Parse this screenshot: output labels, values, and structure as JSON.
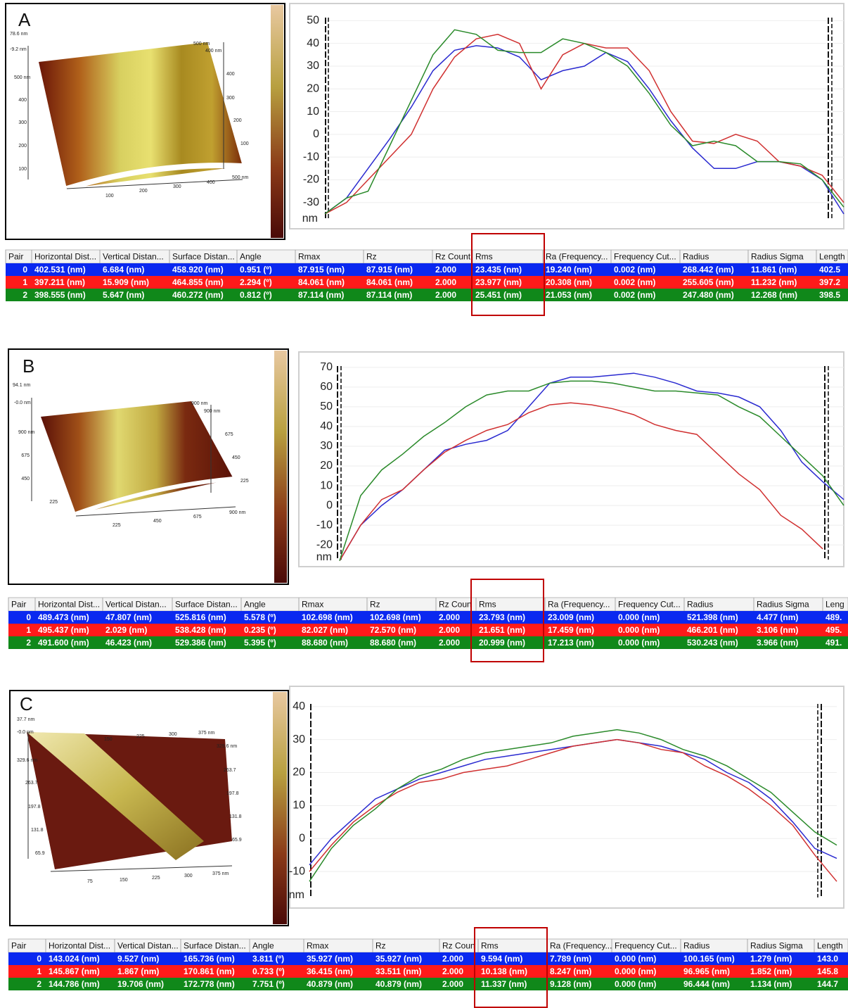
{
  "chart_data": [
    {
      "type": "line",
      "ylabel": "nm",
      "ylim": [
        -40,
        56
      ],
      "yticks": [
        50,
        40,
        30,
        20,
        10,
        0,
        -10,
        -20,
        -30
      ],
      "grid": true,
      "series": [
        {
          "color": "#2a2ad0",
          "values": [
            -35,
            -28,
            -15,
            -2,
            12,
            28,
            37,
            39,
            38,
            34,
            24,
            28,
            30,
            36,
            32,
            20,
            6,
            -6,
            -15,
            -15,
            -12,
            -12,
            -14,
            -20,
            -35
          ]
        },
        {
          "color": "#d03030",
          "values": [
            -35,
            -30,
            -20,
            -10,
            0,
            20,
            34,
            42,
            44,
            40,
            20,
            35,
            40,
            38,
            38,
            28,
            10,
            -3,
            -4,
            0,
            -3,
            -12,
            -14,
            -18,
            -30
          ]
        },
        {
          "color": "#2a8a2a",
          "values": [
            -35,
            -28,
            -25,
            -5,
            15,
            35,
            46,
            44,
            37,
            36,
            36,
            42,
            40,
            36,
            30,
            18,
            4,
            -5,
            -3,
            -5,
            -12,
            -12,
            -13,
            -20,
            -32
          ]
        }
      ]
    },
    {
      "type": "line",
      "ylabel": "nm",
      "ylim": [
        -31,
        76
      ],
      "yticks": [
        70,
        60,
        50,
        40,
        30,
        20,
        10,
        0,
        -10,
        -20
      ],
      "grid": true,
      "series": [
        {
          "color": "#2a2ad0",
          "values": [
            -28,
            -10,
            0,
            8,
            18,
            28,
            31,
            33,
            38,
            50,
            62,
            65,
            65,
            66,
            67,
            65,
            62,
            58,
            57,
            55,
            50,
            38,
            22,
            12,
            3
          ]
        },
        {
          "color": "#d03030",
          "values": [
            -28,
            -10,
            3,
            8,
            18,
            27,
            33,
            38,
            41,
            47,
            51,
            52,
            51,
            49,
            46,
            41,
            38,
            36,
            26,
            16,
            8,
            -5,
            -12,
            -22,
            null
          ]
        },
        {
          "color": "#2a8a2a",
          "values": [
            -28,
            5,
            18,
            26,
            35,
            42,
            50,
            56,
            58,
            58,
            62,
            63,
            63,
            62,
            60,
            58,
            58,
            57,
            56,
            50,
            45,
            35,
            25,
            15,
            0
          ]
        }
      ]
    },
    {
      "type": "line",
      "ylabel": "nm",
      "ylim": [
        -20,
        44
      ],
      "yticks": [
        40,
        30,
        20,
        10,
        0,
        -10
      ],
      "grid": true,
      "series": [
        {
          "color": "#2a2ad0",
          "values": [
            -8,
            0,
            6,
            12,
            15,
            18,
            20,
            22,
            24,
            25,
            26,
            27,
            28,
            29,
            30,
            29,
            28,
            26,
            24,
            20,
            17,
            12,
            5,
            -3,
            -6
          ]
        },
        {
          "color": "#d03030",
          "values": [
            -10,
            -2,
            5,
            10,
            14,
            17,
            18,
            20,
            21,
            22,
            24,
            26,
            28,
            29,
            30,
            29,
            27,
            26,
            22,
            19,
            15,
            10,
            4,
            -5,
            -13
          ]
        },
        {
          "color": "#2a8a2a",
          "values": [
            -13,
            -3,
            4,
            9,
            15,
            19,
            21,
            24,
            26,
            27,
            28,
            29,
            31,
            32,
            33,
            32,
            30,
            27,
            25,
            22,
            18,
            14,
            8,
            2,
            -2
          ]
        }
      ]
    }
  ],
  "panels": [
    {
      "label": "A",
      "image_labels": [
        "78.6 nm",
        "-9.2 nm",
        "500 nm",
        "400",
        "300",
        "200",
        "100",
        "500 nm",
        "400 nm",
        "400",
        "300",
        "200",
        "100",
        "100",
        "200",
        "300",
        "400",
        "500 nm"
      ]
    },
    {
      "label": "B",
      "image_labels": [
        "94.1 nm",
        "-0.0 nm",
        "900 nm",
        "675",
        "450",
        "225",
        "900 nm",
        "900 nm",
        "675",
        "450",
        "225",
        "225",
        "450",
        "675",
        "900 nm"
      ]
    },
    {
      "label": "C",
      "image_labels": [
        "37.7 nm",
        "-0.0 nm",
        "329.6 nm",
        "263.7",
        "197.8",
        "131.8",
        "65.9",
        "150",
        "225",
        "300",
        "375 nm",
        "329.6 nm",
        "263.7",
        "197.8",
        "131.8",
        "65.9",
        "75",
        "150",
        "225",
        "300",
        "375 nm"
      ]
    }
  ],
  "tables": [
    {
      "columns": [
        "Pair",
        "Horizontal Dist...",
        "Vertical Distan...",
        "Surface Distan...",
        "Angle",
        "Rmax",
        "Rz",
        "Rz Count",
        "Rms",
        "Ra (Frequency...",
        "Frequency Cut...",
        "Radius",
        "Radius Sigma",
        "Length"
      ],
      "rows": [
        [
          "0",
          "402.531 (nm)",
          "6.684 (nm)",
          "458.920 (nm)",
          "0.951 (º)",
          "87.915 (nm)",
          "87.915 (nm)",
          "2.000",
          "23.435 (nm)",
          "19.240 (nm)",
          "0.002 (nm)",
          "268.442 (nm)",
          "11.861 (nm)",
          "402.5"
        ],
        [
          "1",
          "397.211 (nm)",
          "15.909 (nm)",
          "464.855 (nm)",
          "2.294 (º)",
          "84.061 (nm)",
          "84.061 (nm)",
          "2.000",
          "23.977 (nm)",
          "20.308 (nm)",
          "0.002 (nm)",
          "255.605 (nm)",
          "11.232 (nm)",
          "397.2"
        ],
        [
          "2",
          "398.555 (nm)",
          "5.647 (nm)",
          "460.272 (nm)",
          "0.812 (º)",
          "87.114 (nm)",
          "87.114 (nm)",
          "2.000",
          "25.451 (nm)",
          "21.053 (nm)",
          "0.002 (nm)",
          "247.480 (nm)",
          "12.268 (nm)",
          "398.5"
        ]
      ]
    },
    {
      "columns": [
        "Pair",
        "Horizontal Dist...",
        "Vertical Distan...",
        "Surface Distan...",
        "Angle",
        "Rmax",
        "Rz",
        "Rz Coun",
        "Rms",
        "Ra (Frequency...",
        "Frequency Cut...",
        "Radius",
        "Radius Sigma",
        "Leng"
      ],
      "rows": [
        [
          "0",
          "489.473 (nm)",
          "47.807 (nm)",
          "525.816 (nm)",
          "5.578 (º)",
          "102.698 (nm)",
          "102.698 (nm)",
          "2.000",
          "23.793 (nm)",
          "23.009 (nm)",
          "0.000 (nm)",
          "521.398 (nm)",
          "4.477 (nm)",
          "489."
        ],
        [
          "1",
          "495.437 (nm)",
          "2.029 (nm)",
          "538.428 (nm)",
          "0.235 (º)",
          "82.027 (nm)",
          "72.570 (nm)",
          "2.000",
          "21.651 (nm)",
          "17.459 (nm)",
          "0.000 (nm)",
          "466.201 (nm)",
          "3.106 (nm)",
          "495."
        ],
        [
          "2",
          "491.600 (nm)",
          "46.423 (nm)",
          "529.386 (nm)",
          "5.395 (º)",
          "88.680 (nm)",
          "88.680 (nm)",
          "2.000",
          "20.999 (nm)",
          "17.213 (nm)",
          "0.000 (nm)",
          "530.243 (nm)",
          "3.966 (nm)",
          "491."
        ]
      ]
    },
    {
      "columns": [
        "Pair",
        "Horizontal Dist...",
        "Vertical Distan...",
        "Surface Distan...",
        "Angle",
        "Rmax",
        "Rz",
        "Rz Coun",
        "Rms",
        "Ra (Frequency...",
        "Frequency Cut...",
        "Radius",
        "Radius Sigma",
        "Length"
      ],
      "rows": [
        [
          "0",
          "143.024 (nm)",
          "9.527 (nm)",
          "165.736 (nm)",
          "3.811 (º)",
          "35.927 (nm)",
          "35.927 (nm)",
          "2.000",
          "9.594 (nm)",
          "7.789 (nm)",
          "0.000 (nm)",
          "100.165 (nm)",
          "1.279 (nm)",
          "143.0"
        ],
        [
          "1",
          "145.867 (nm)",
          "1.867 (nm)",
          "170.861 (nm)",
          "0.733 (º)",
          "36.415 (nm)",
          "33.511 (nm)",
          "2.000",
          "10.138 (nm)",
          "8.247 (nm)",
          "0.000 (nm)",
          "96.965 (nm)",
          "1.852 (nm)",
          "145.8"
        ],
        [
          "2",
          "144.786 (nm)",
          "19.706 (nm)",
          "172.778 (nm)",
          "7.751 (º)",
          "40.879 (nm)",
          "40.879 (nm)",
          "2.000",
          "11.337 (nm)",
          "9.128 (nm)",
          "0.000 (nm)",
          "96.444 (nm)",
          "1.134 (nm)",
          "144.7"
        ]
      ]
    }
  ]
}
